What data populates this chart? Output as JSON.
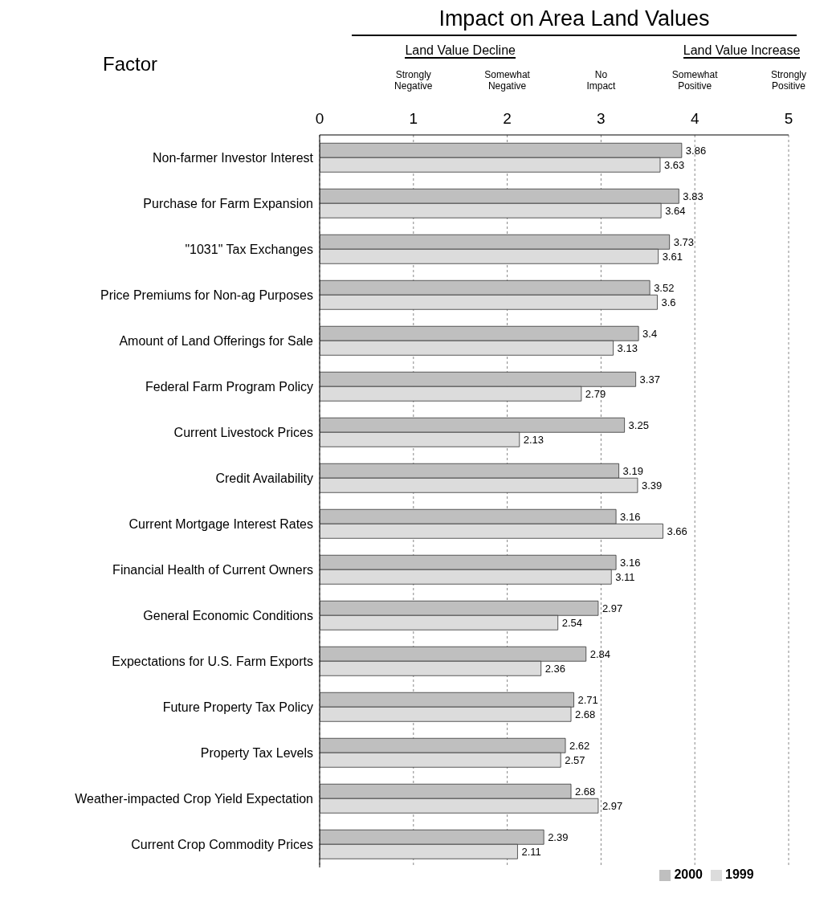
{
  "chart_data": {
    "type": "bar",
    "orientation": "horizontal",
    "title": "Impact on Area Land Values",
    "ylabel": "Factor",
    "annotations": [
      "Land Value Decline",
      "Land Value Increase",
      "Strongly Negative",
      "Somewhat Negative",
      "No Impact",
      "Somewhat Positive",
      "Strongly Positive"
    ],
    "categories": [
      "Non-farmer Investor Interest",
      "Purchase for Farm Expansion",
      "\"1031\" Tax Exchanges",
      "Price Premiums for Non-ag Purposes",
      "Amount of Land Offerings for Sale",
      "Federal Farm Program Policy",
      "Current Livestock Prices",
      "Credit Availability",
      "Current Mortgage Interest Rates",
      "Financial Health of Current Owners",
      "General Economic Conditions",
      "Expectations for U.S. Farm Exports",
      "Future Property Tax Policy",
      "Property Tax Levels",
      "Weather-impacted Crop Yield Expectation",
      "Current Crop Commodity Prices"
    ],
    "series": [
      {
        "name": "2000",
        "color": "#bfbfbf",
        "values": [
          3.86,
          3.83,
          3.73,
          3.52,
          3.4,
          3.37,
          3.25,
          3.19,
          3.16,
          3.16,
          2.97,
          2.84,
          2.71,
          2.62,
          2.68,
          2.39
        ]
      },
      {
        "name": "1999",
        "color": "#dcdcdc",
        "values": [
          3.63,
          3.64,
          3.61,
          3.6,
          3.13,
          2.79,
          2.13,
          3.39,
          3.66,
          3.11,
          2.54,
          2.36,
          2.68,
          2.57,
          2.97,
          2.11
        ]
      }
    ],
    "xlim": [
      0,
      5
    ],
    "xticks": [
      0,
      1,
      2,
      3,
      4,
      5
    ],
    "grid": "x",
    "legend": "bottom",
    "data_labels": true
  }
}
